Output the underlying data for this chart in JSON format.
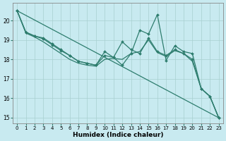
{
  "xlabel": "Humidex (Indice chaleur)",
  "ylabel": "",
  "background_color": "#c8eaf0",
  "grid_color": "#a8d0d0",
  "line_color": "#2e7d6e",
  "xlim": [
    -0.5,
    23.5
  ],
  "ylim": [
    14.7,
    20.9
  ],
  "xticks": [
    0,
    1,
    2,
    3,
    4,
    5,
    6,
    7,
    8,
    9,
    10,
    11,
    12,
    13,
    14,
    15,
    16,
    17,
    18,
    19,
    20,
    21,
    22,
    23
  ],
  "yticks": [
    15,
    16,
    17,
    18,
    19,
    20
  ],
  "lines": [
    {
      "x": [
        0,
        1,
        2,
        3,
        4,
        5,
        6,
        7,
        8,
        9,
        10,
        11,
        12,
        13,
        14,
        15,
        16,
        17,
        18,
        19,
        20,
        21,
        22,
        23
      ],
      "y": [
        20.5,
        19.4,
        19.2,
        19.1,
        18.8,
        18.5,
        18.2,
        17.9,
        17.8,
        17.7,
        18.4,
        18.1,
        17.7,
        18.3,
        19.5,
        19.3,
        20.3,
        17.95,
        18.7,
        18.4,
        18.3,
        16.5,
        16.1,
        15.0
      ],
      "markers": true
    },
    {
      "x": [
        0,
        1,
        2,
        3,
        4,
        5,
        6,
        7,
        8,
        9,
        10,
        11,
        12,
        13,
        14,
        15,
        16,
        17,
        18,
        19,
        20,
        21,
        22,
        23
      ],
      "y": [
        20.5,
        19.4,
        19.2,
        19.05,
        18.75,
        18.45,
        18.2,
        17.9,
        17.8,
        17.7,
        18.2,
        18.1,
        18.9,
        18.5,
        18.3,
        19.1,
        18.4,
        18.2,
        18.5,
        18.3,
        18.0,
        16.5,
        16.1,
        15.0
      ],
      "markers": true
    },
    {
      "x": [
        0,
        1,
        2,
        3,
        4,
        5,
        6,
        7,
        8,
        9,
        10,
        11,
        12,
        13,
        14,
        15,
        16,
        17,
        18,
        19,
        20,
        21,
        22,
        23
      ],
      "y": [
        20.5,
        19.35,
        19.15,
        18.9,
        18.6,
        18.3,
        18.0,
        17.8,
        17.7,
        17.65,
        18.0,
        18.05,
        18.0,
        18.3,
        18.4,
        19.0,
        18.35,
        18.15,
        18.45,
        18.3,
        17.9,
        16.5,
        16.1,
        15.0
      ],
      "markers": false
    },
    {
      "x": [
        0,
        23
      ],
      "y": [
        20.5,
        15.0
      ],
      "markers": false
    }
  ]
}
